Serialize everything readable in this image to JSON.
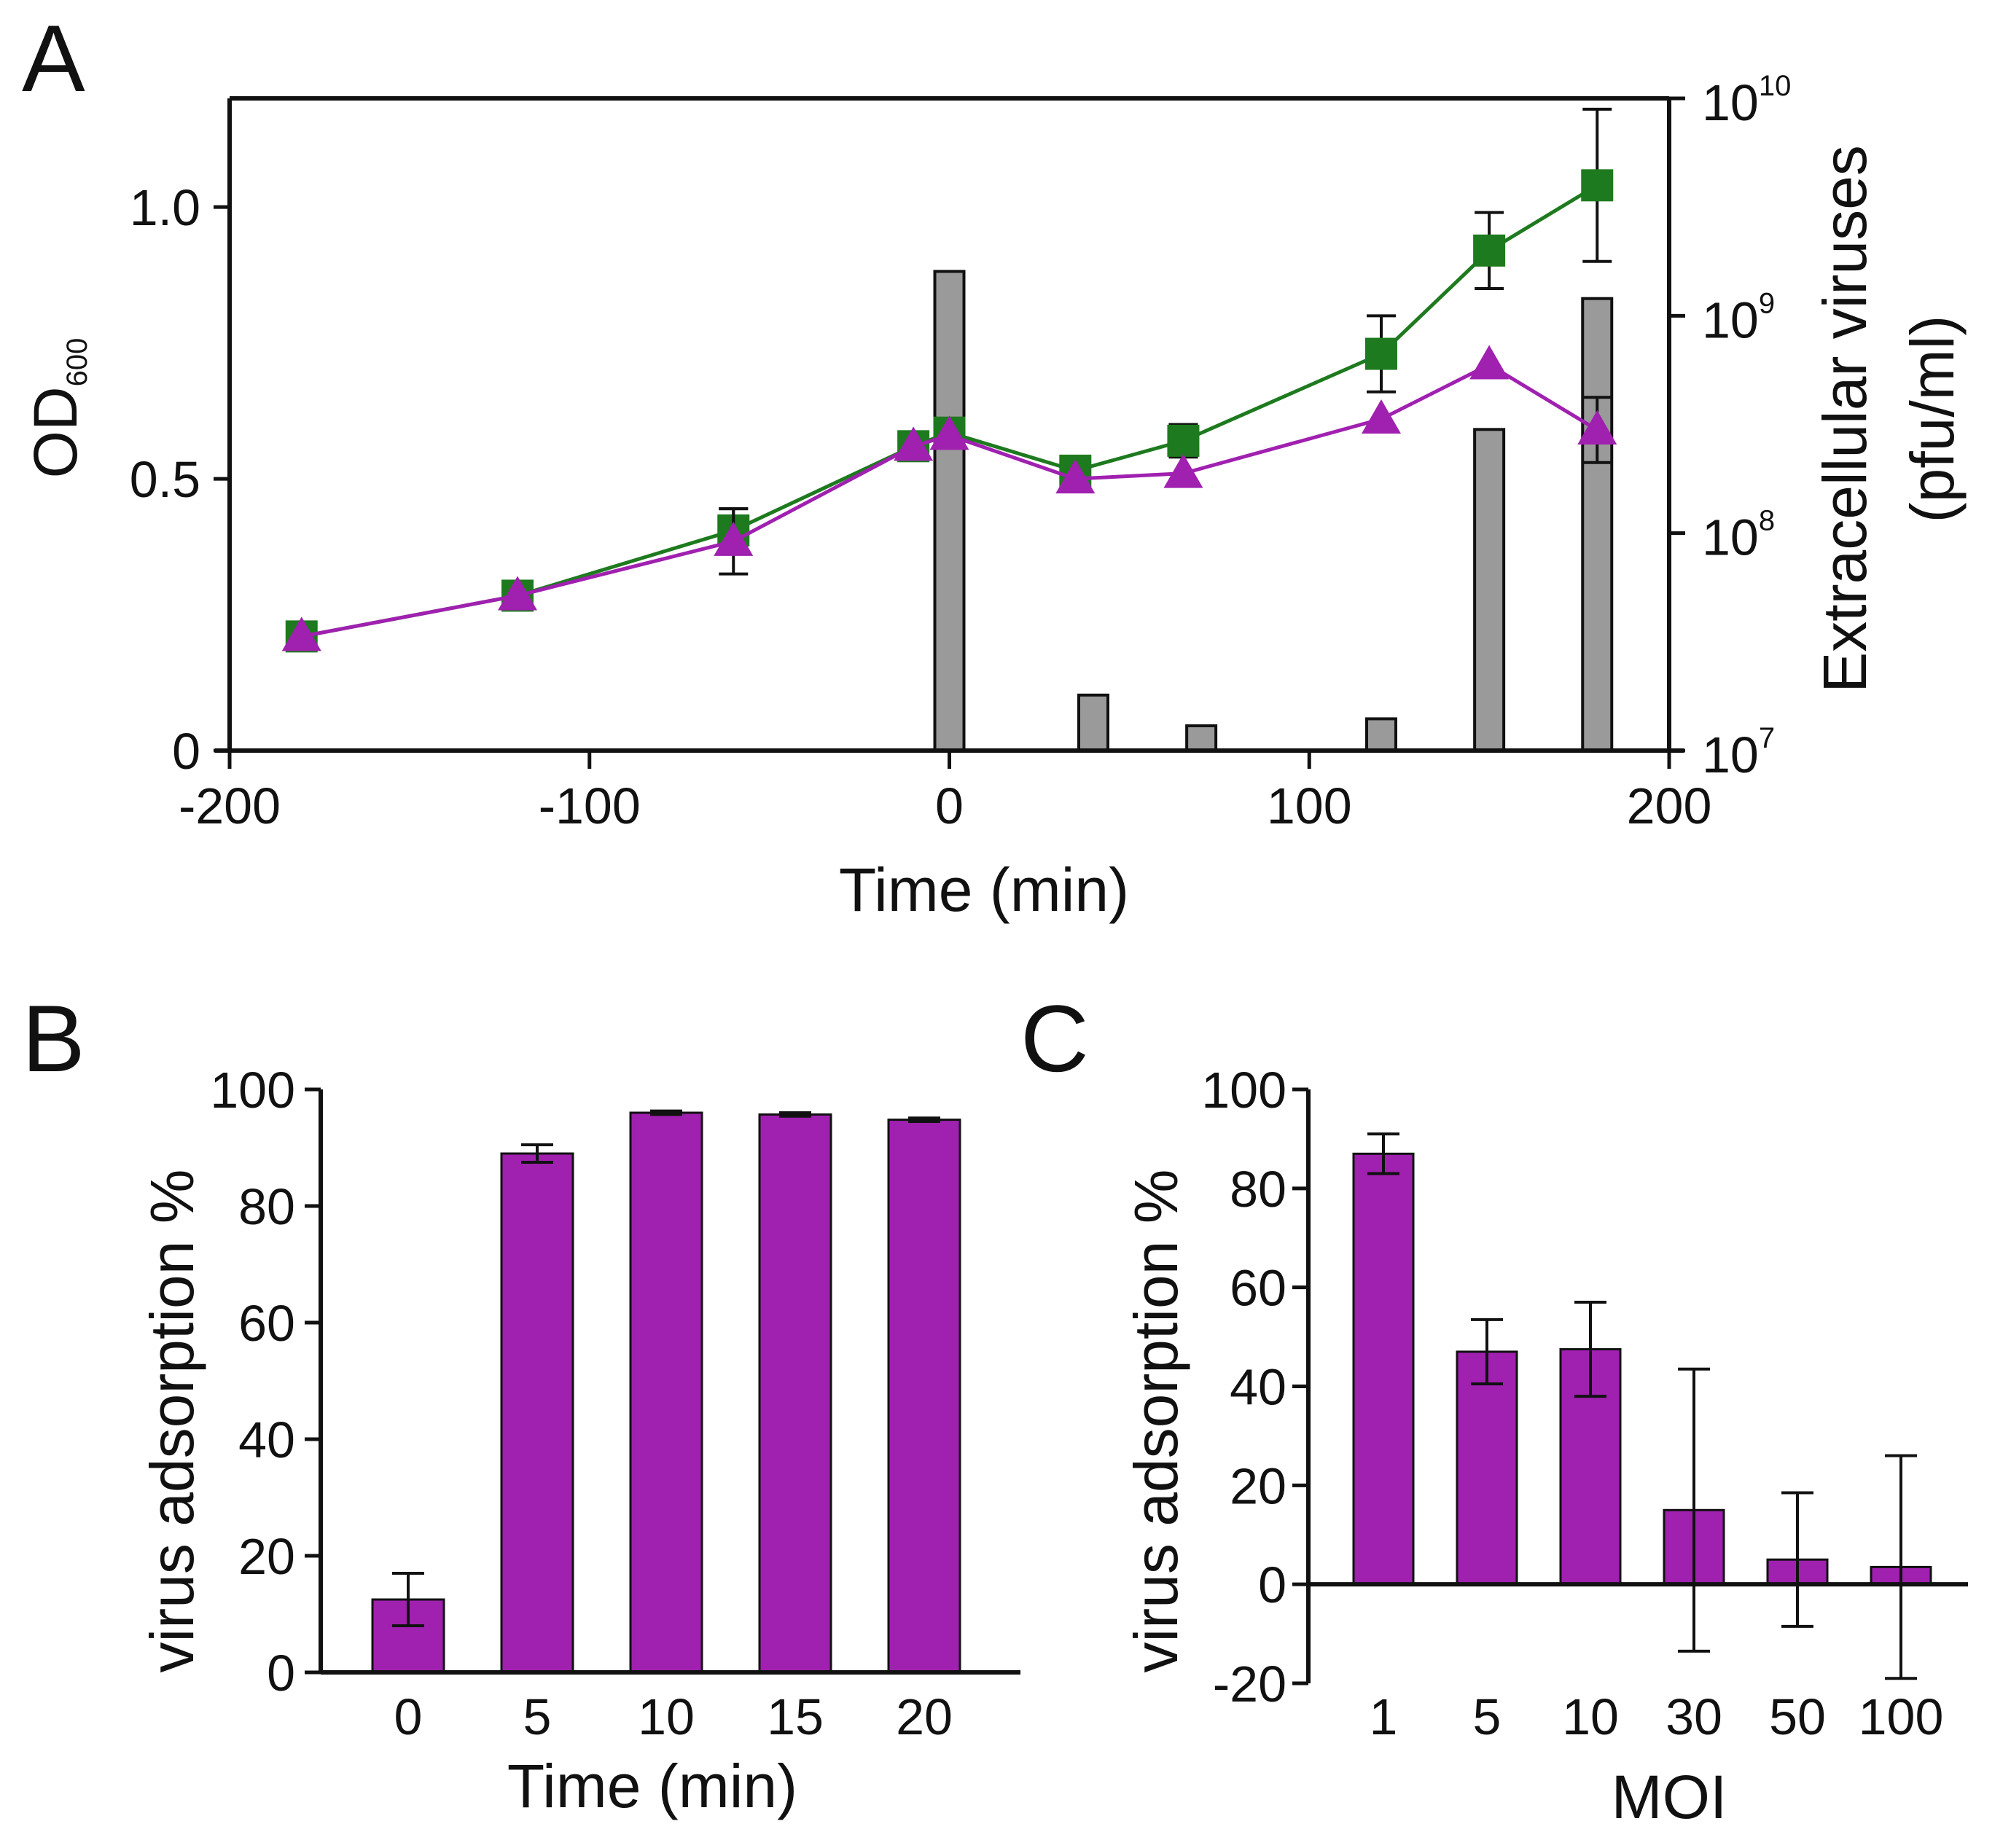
{
  "figure": {
    "panel_letters": [
      "A",
      "B",
      "C"
    ]
  },
  "colors": {
    "green": "#1e7a1e",
    "purple": "#a020b0",
    "gray_bar": "#9a9a9a",
    "axis": "#111111"
  },
  "chart_data": [
    {
      "panel": "A",
      "type": "line",
      "xlabel": "Time (min)",
      "ylabel_main": "OD",
      "ylabel_sub": "600",
      "y2label_line1": "Extracellular viruses",
      "y2label_line2": "(pfu/ml)",
      "xlim": [
        -200,
        200
      ],
      "ylim": [
        0,
        1.2
      ],
      "x_ticks": [
        "-200",
        "-100",
        "0",
        "100",
        "200"
      ],
      "y_ticks": [
        "0",
        "0.5",
        "1.0"
      ],
      "y2_scale": "log",
      "y2lim": [
        10000000,
        10000000000
      ],
      "y2_ticks": [
        {
          "base": "10",
          "exp": "7"
        },
        {
          "base": "10",
          "exp": "8"
        },
        {
          "base": "10",
          "exp": "9"
        },
        {
          "base": "10",
          "exp": "10"
        }
      ],
      "bars": {
        "axis": "right",
        "color": "gray",
        "x": [
          0,
          40,
          70,
          120,
          150,
          180
        ],
        "values": [
          1600000000,
          18000000,
          13000000,
          14000000,
          300000000,
          1200000000
        ]
      },
      "series": [
        {
          "marker": "square",
          "color": "green",
          "x": [
            -180,
            -120,
            -60,
            -10,
            0,
            35,
            65,
            120,
            150,
            180
          ],
          "y": [
            0.21,
            0.285,
            0.405,
            0.56,
            0.585,
            0.515,
            0.57,
            0.73,
            0.92,
            1.04
          ],
          "err": [
            0.0,
            0.0,
            0.04,
            0.0,
            0.0,
            0.0,
            0.03,
            0.07,
            0.07,
            0.14
          ]
        },
        {
          "marker": "triangle",
          "color": "purple",
          "x": [
            -180,
            -120,
            -60,
            -10,
            0,
            35,
            65,
            120,
            150,
            180
          ],
          "y": [
            0.21,
            0.285,
            0.385,
            0.56,
            0.58,
            0.5,
            0.51,
            0.61,
            0.71,
            0.59
          ],
          "err": [
            0.0,
            0.0,
            0.06,
            0.0,
            0.0,
            0.0,
            0.0,
            0.0,
            0.0,
            0.06
          ]
        }
      ]
    },
    {
      "panel": "B",
      "type": "bar",
      "xlabel": "Time (min)",
      "ylabel": "virus adsorption %",
      "ylim": [
        0,
        100
      ],
      "y_ticks": [
        "0",
        "20",
        "40",
        "60",
        "80",
        "100"
      ],
      "categories": [
        "0",
        "5",
        "10",
        "15",
        "20"
      ],
      "values": [
        12.5,
        89,
        96,
        95.7,
        94.8
      ],
      "err": [
        4.5,
        1.5,
        0.3,
        0.3,
        0.3
      ],
      "color": "purple"
    },
    {
      "panel": "C",
      "type": "bar",
      "xlabel": "MOI",
      "ylabel": "virus adsorption %",
      "ylim": [
        -20,
        100
      ],
      "y_ticks": [
        "-20",
        "0",
        "20",
        "40",
        "60",
        "80",
        "100"
      ],
      "categories": [
        "1",
        "5",
        "10",
        "30",
        "50",
        "100"
      ],
      "values": [
        87,
        47,
        47.5,
        15,
        5,
        3.5
      ],
      "err": [
        4,
        6.5,
        9.5,
        28.5,
        13.5,
        22.5
      ],
      "color": "purple"
    }
  ]
}
